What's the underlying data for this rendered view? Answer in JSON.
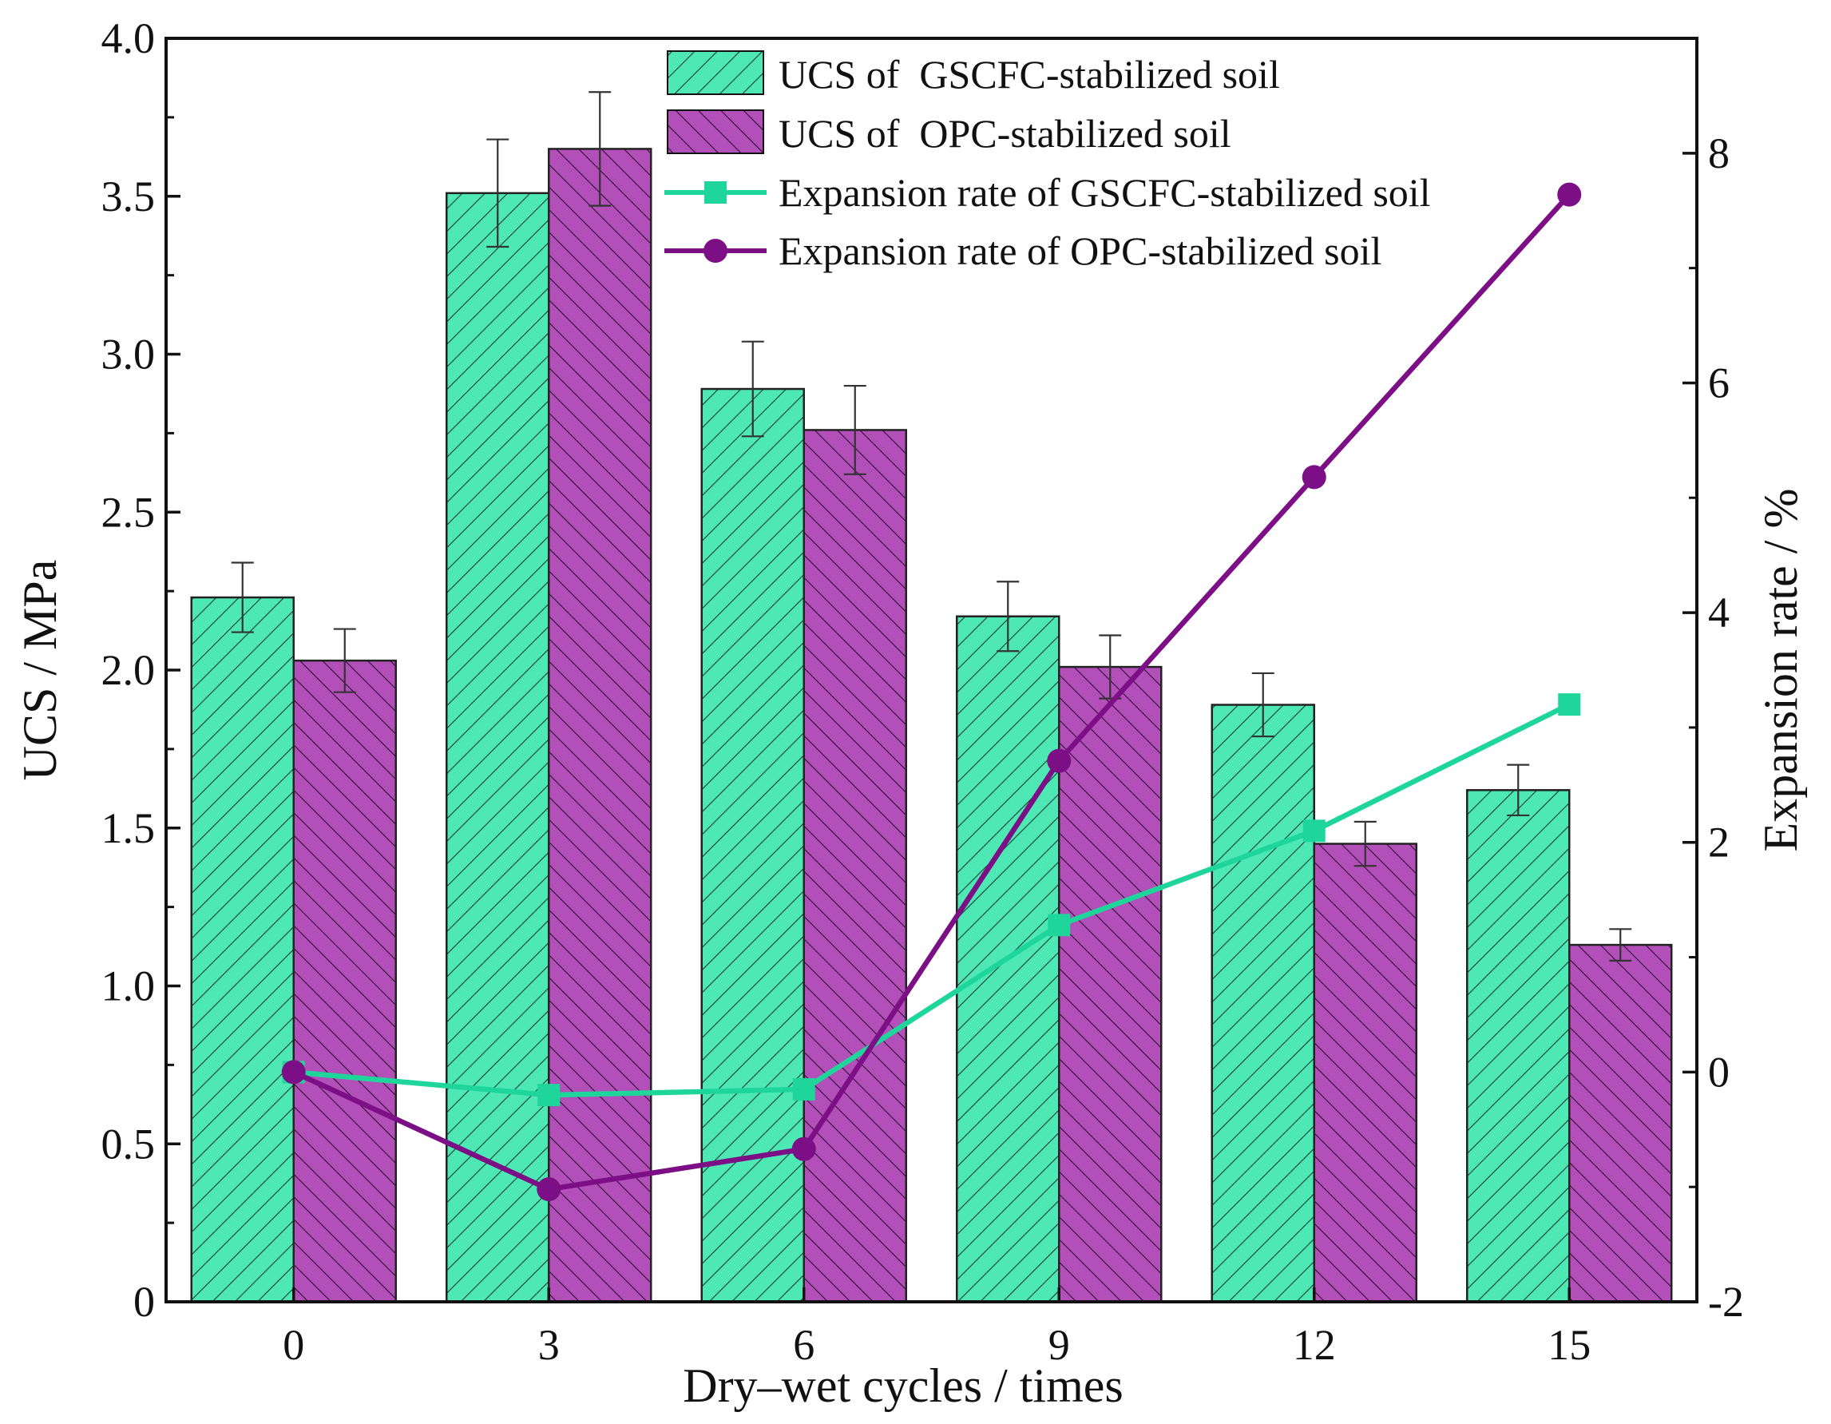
{
  "chart_data": {
    "type": "bar",
    "title": "",
    "xlabel": "Dry–wet cycles / times",
    "ylabel": "UCS / MPa",
    "y2label": "Expansion rate / %",
    "categories": [
      "0",
      "3",
      "6",
      "9",
      "12",
      "15"
    ],
    "ylim": [
      0,
      4.0
    ],
    "yticks": [
      "0",
      "0.5",
      "1.0",
      "1.5",
      "2.0",
      "2.5",
      "3.0",
      "3.5",
      "4.0"
    ],
    "y2lim": [
      -2,
      9
    ],
    "y2ticks": [
      "-2",
      "0",
      "2",
      "4",
      "6",
      "8"
    ],
    "bar_series": [
      {
        "name": "UCS of  GSCFC-stabilized soil",
        "color": "#4de8b4",
        "hatch": "forward",
        "values": [
          2.23,
          3.51,
          2.89,
          2.17,
          1.89,
          1.62
        ],
        "errors": [
          0.11,
          0.17,
          0.15,
          0.11,
          0.1,
          0.08
        ]
      },
      {
        "name": "UCS of  OPC-stabilized soil",
        "color": "#b24fb8",
        "hatch": "backward",
        "values": [
          2.03,
          3.65,
          2.76,
          2.01,
          1.45,
          1.13
        ],
        "errors": [
          0.1,
          0.18,
          0.14,
          0.1,
          0.07,
          0.05
        ]
      }
    ],
    "line_series": [
      {
        "name": "Expansion rate of GSCFC-stabilized soil",
        "color": "#1fd69a",
        "marker": "square",
        "axis": "right",
        "values": [
          0.0,
          -0.2,
          -0.15,
          1.28,
          2.1,
          3.2
        ]
      },
      {
        "name": "Expansion rate of OPC-stabilized soil",
        "color": "#7d0f86",
        "marker": "circle",
        "axis": "right",
        "values": [
          0.0,
          -1.02,
          -0.67,
          2.71,
          5.18,
          7.64
        ]
      }
    ],
    "legend": "top-center",
    "grid": false
  }
}
